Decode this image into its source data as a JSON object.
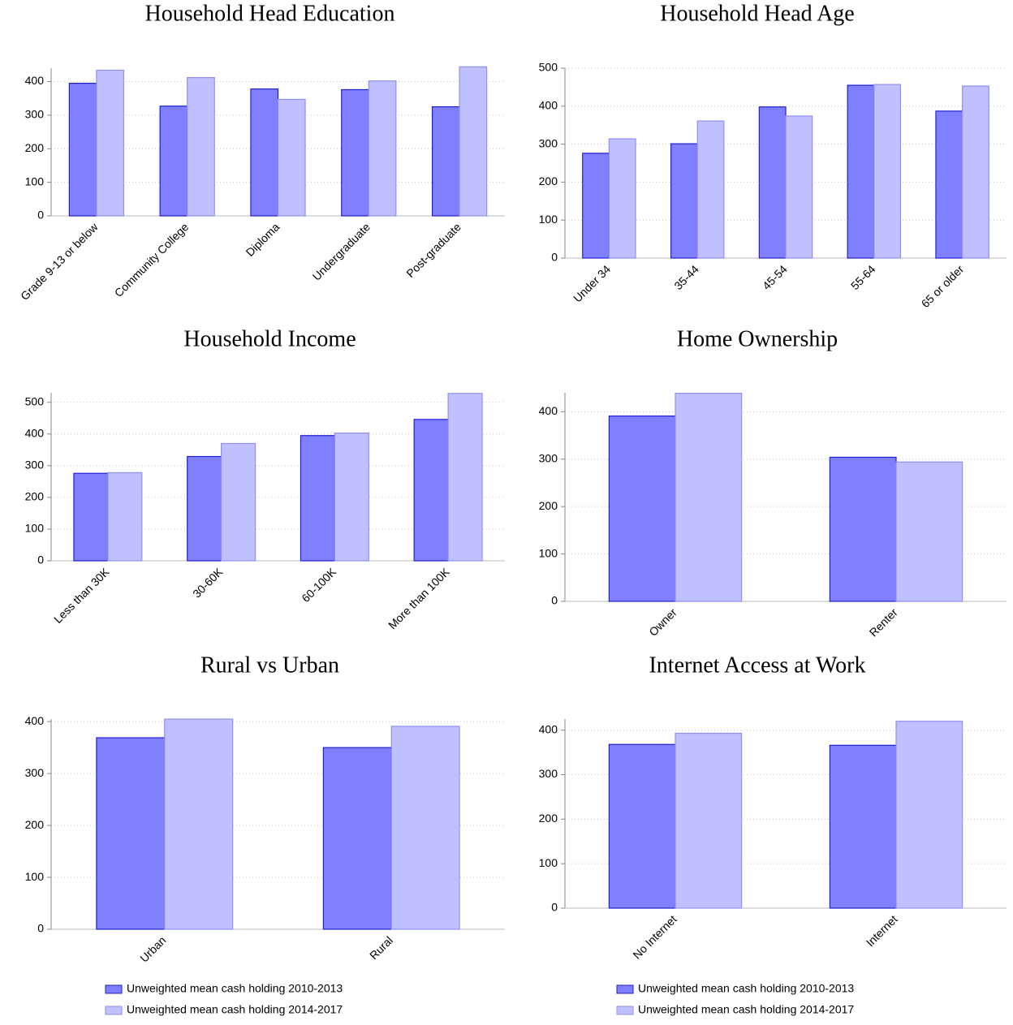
{
  "chart_data": [
    {
      "type": "bar",
      "title": "Household Head Education",
      "categories": [
        "Grade 9-13 or below",
        "Community College",
        "Diploma",
        "Undergraduate",
        "Post-graduate"
      ],
      "series": [
        {
          "color": "#8080ff",
          "values": [
            395,
            327,
            378,
            376,
            325
          ]
        },
        {
          "color": "#c0c0ff",
          "values": [
            434,
            412,
            347,
            402,
            444
          ]
        }
      ],
      "ylim": [
        0,
        440
      ],
      "yticks": [
        0,
        100,
        200,
        300,
        400
      ],
      "grid": true
    },
    {
      "type": "bar",
      "title": "Household Head Age",
      "categories": [
        "Under 34",
        "35-44",
        "45-54",
        "55-64",
        "65 or older"
      ],
      "series": [
        {
          "color": "#8080ff",
          "values": [
            276,
            301,
            398,
            455,
            387
          ]
        },
        {
          "color": "#c0c0ff",
          "values": [
            314,
            361,
            374,
            457,
            453
          ]
        }
      ],
      "ylim": [
        0,
        500
      ],
      "yticks": [
        0,
        100,
        200,
        300,
        400,
        500
      ],
      "grid": true
    },
    {
      "type": "bar",
      "title": "Household Income",
      "categories": [
        "Less than 30K",
        "30-60K",
        "60-100K",
        "More than 100K"
      ],
      "series": [
        {
          "color": "#8080ff",
          "values": [
            276,
            329,
            395,
            446
          ]
        },
        {
          "color": "#c0c0ff",
          "values": [
            278,
            370,
            403,
            528
          ]
        }
      ],
      "ylim": [
        0,
        530
      ],
      "yticks": [
        0,
        100,
        200,
        300,
        400,
        500
      ],
      "grid": true
    },
    {
      "type": "bar",
      "title": "Home Ownership",
      "categories": [
        "Owner",
        "Renter"
      ],
      "series": [
        {
          "color": "#8080ff",
          "values": [
            391,
            304
          ]
        },
        {
          "color": "#c0c0ff",
          "values": [
            439,
            294
          ]
        }
      ],
      "ylim": [
        0,
        440
      ],
      "yticks": [
        0,
        100,
        200,
        300,
        400
      ],
      "grid": true
    },
    {
      "type": "bar",
      "title": "Rural vs Urban",
      "categories": [
        "Urban",
        "Rural"
      ],
      "series": [
        {
          "name": "Unweighted mean cash holding 2010-2013",
          "color": "#8080ff",
          "values": [
            369,
            350
          ]
        },
        {
          "name": "Unweighted mean cash holding 2014-2017",
          "color": "#c0c0ff",
          "values": [
            405,
            391
          ]
        }
      ],
      "ylim": [
        0,
        405
      ],
      "yticks": [
        0,
        100,
        200,
        300,
        400
      ],
      "grid": true
    },
    {
      "type": "bar",
      "title": "Internet Access at Work",
      "categories": [
        "No Internet",
        "Internet"
      ],
      "series": [
        {
          "name": "Unweighted mean cash holding 2010-2013",
          "color": "#8080ff",
          "values": [
            368,
            366
          ]
        },
        {
          "name": "Unweighted mean cash holding 2014-2017",
          "color": "#c0c0ff",
          "values": [
            393,
            420
          ]
        }
      ],
      "ylim": [
        0,
        425
      ],
      "yticks": [
        0,
        100,
        200,
        300,
        400
      ],
      "grid": true
    }
  ]
}
